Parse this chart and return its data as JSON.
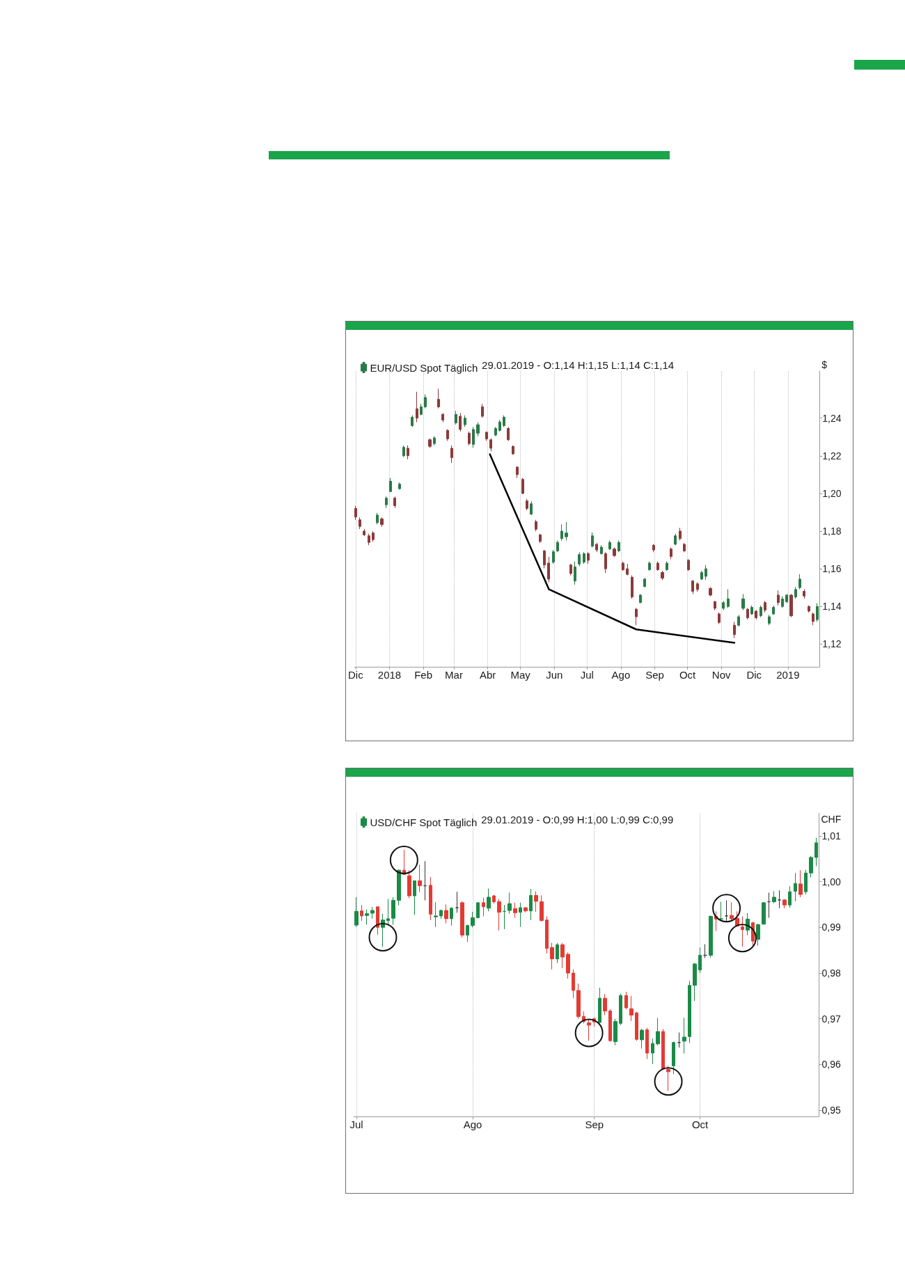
{
  "chart_data": [
    {
      "type": "candlestick",
      "legend": "top left",
      "grid": "x",
      "ylabel": "$",
      "annotations": [
        "29.01.2019 - O:1,14 H:1,15 L:1,14 C:1,14"
      ],
      "xlim": [
        "2017-11-30",
        "2019-01-30"
      ],
      "xticks": [
        {
          "value": "2017-12-01",
          "label": "Dic"
        },
        {
          "value": "2018-01-01",
          "label": "2018"
        },
        {
          "value": "2018-02-01",
          "label": "Feb"
        },
        {
          "value": "2018-03-01",
          "label": "Mar"
        },
        {
          "value": "2018-04-01",
          "label": "Abr"
        },
        {
          "value": "2018-05-01",
          "label": "May"
        },
        {
          "value": "2018-06-01",
          "label": "Jun"
        },
        {
          "value": "2018-07-01",
          "label": "Jul"
        },
        {
          "value": "2018-08-01",
          "label": "Ago"
        },
        {
          "value": "2018-09-01",
          "label": "Sep"
        },
        {
          "value": "2018-10-01",
          "label": "Oct"
        },
        {
          "value": "2018-11-01",
          "label": "Nov"
        },
        {
          "value": "2018-12-01",
          "label": "Dic"
        },
        {
          "value": "2019-01-01",
          "label": "2019"
        }
      ],
      "ylim": [
        1.108,
        1.265
      ],
      "yticks": [
        {
          "value": 1.12,
          "label": "1,12"
        },
        {
          "value": 1.14,
          "label": "1,14"
        },
        {
          "value": 1.16,
          "label": "1,16"
        },
        {
          "value": 1.18,
          "label": "1,18"
        },
        {
          "value": 1.2,
          "label": "1,20"
        },
        {
          "value": 1.22,
          "label": "1,22"
        },
        {
          "value": 1.24,
          "label": "1,24"
        }
      ],
      "series": [
        {
          "name": "EUR/USD Spot Täglich",
          "color": "#2a7a48",
          "x": [
            "2017-12-01",
            "2017-12-05",
            "2017-12-09",
            "2017-12-13",
            "2017-12-17",
            "2017-12-21",
            "2017-12-25",
            "2017-12-29",
            "2018-01-02",
            "2018-01-06",
            "2018-01-10",
            "2018-01-14",
            "2018-01-18",
            "2018-01-22",
            "2018-01-26",
            "2018-01-30",
            "2018-02-03",
            "2018-02-07",
            "2018-02-11",
            "2018-02-15",
            "2018-02-19",
            "2018-02-23",
            "2018-02-27",
            "2018-03-03",
            "2018-03-07",
            "2018-03-11",
            "2018-03-15",
            "2018-03-19",
            "2018-03-23",
            "2018-03-27",
            "2018-03-31",
            "2018-04-04",
            "2018-04-08",
            "2018-04-12",
            "2018-04-16",
            "2018-04-20",
            "2018-04-24",
            "2018-04-28",
            "2018-05-03",
            "2018-05-07",
            "2018-05-11",
            "2018-05-15",
            "2018-05-19",
            "2018-05-23",
            "2018-05-27",
            "2018-05-31",
            "2018-06-04",
            "2018-06-08",
            "2018-06-12",
            "2018-06-16",
            "2018-06-20",
            "2018-06-24",
            "2018-06-28",
            "2018-07-02",
            "2018-07-06",
            "2018-07-10",
            "2018-07-14",
            "2018-07-18",
            "2018-07-22",
            "2018-07-26",
            "2018-07-30",
            "2018-08-03",
            "2018-08-07",
            "2018-08-11",
            "2018-08-15",
            "2018-08-19",
            "2018-08-23",
            "2018-08-27",
            "2018-08-31",
            "2018-09-04",
            "2018-09-08",
            "2018-09-12",
            "2018-09-16",
            "2018-09-20",
            "2018-09-24",
            "2018-09-28",
            "2018-10-02",
            "2018-10-06",
            "2018-10-10",
            "2018-10-14",
            "2018-10-18",
            "2018-10-22",
            "2018-10-26",
            "2018-10-30",
            "2018-11-03",
            "2018-11-07",
            "2018-11-13",
            "2018-11-17",
            "2018-11-21",
            "2018-11-25",
            "2018-11-29",
            "2018-12-03",
            "2018-12-07",
            "2018-12-11",
            "2018-12-15",
            "2018-12-19",
            "2018-12-23",
            "2018-12-27",
            "2018-12-31",
            "2019-01-04",
            "2019-01-08",
            "2019-01-12",
            "2019-01-16",
            "2019-01-20",
            "2019-01-24",
            "2019-01-28"
          ],
          "ohlc": [
            [
              1.192,
              1.1934,
              1.186,
              1.1875
            ],
            [
              1.186,
              1.1873,
              1.1811,
              1.1825
            ],
            [
              1.18,
              1.1811,
              1.1774,
              1.178
            ],
            [
              1.1775,
              1.1786,
              1.1725,
              1.174
            ],
            [
              1.179,
              1.1799,
              1.1743,
              1.1755
            ],
            [
              1.1845,
              1.1897,
              1.1836,
              1.1885
            ],
            [
              1.1865,
              1.1873,
              1.1823,
              1.1835
            ],
            [
              1.194,
              1.1984,
              1.1922,
              1.1975
            ],
            [
              1.201,
              1.2082,
              1.2008,
              1.2065
            ],
            [
              1.1975,
              1.1984,
              1.1922,
              1.1935
            ],
            [
              1.2025,
              1.2058,
              1.2021,
              1.205
            ],
            [
              1.22,
              1.2255,
              1.2193,
              1.2245
            ],
            [
              1.224,
              1.2255,
              1.2181,
              1.22
            ],
            [
              1.236,
              1.2415,
              1.2353,
              1.2405
            ],
            [
              1.245,
              1.254,
              1.2378,
              1.24
            ],
            [
              1.242,
              1.2476,
              1.2415,
              1.246
            ],
            [
              1.246,
              1.2526,
              1.2452,
              1.251
            ],
            [
              1.2285,
              1.2292,
              1.2242,
              1.225
            ],
            [
              1.2265,
              1.2304,
              1.2255,
              1.2295
            ],
            [
              1.25,
              1.2556,
              1.2452,
              1.246
            ],
            [
              1.242,
              1.2427,
              1.2378,
              1.239
            ],
            [
              1.2335,
              1.2341,
              1.2279,
              1.229
            ],
            [
              1.224,
              1.2255,
              1.2162,
              1.219
            ],
            [
              1.2375,
              1.2439,
              1.2366,
              1.242
            ],
            [
              1.241,
              1.2427,
              1.2329,
              1.234
            ],
            [
              1.2365,
              1.2415,
              1.2353,
              1.24
            ],
            [
              1.232,
              1.2329,
              1.2255,
              1.2265
            ],
            [
              1.226,
              1.2353,
              1.2242,
              1.234
            ],
            [
              1.232,
              1.2378,
              1.2304,
              1.2365
            ],
            [
              1.246,
              1.2476,
              1.2402,
              1.241
            ],
            [
              1.2325,
              1.2329,
              1.2279,
              1.229
            ],
            [
              1.2285,
              1.2292,
              1.2224,
              1.224
            ],
            [
              1.231,
              1.2353,
              1.2304,
              1.2345
            ],
            [
              1.2335,
              1.239,
              1.2329,
              1.238
            ],
            [
              1.236,
              1.2415,
              1.2353,
              1.2405
            ],
            [
              1.2345,
              1.2353,
              1.2279,
              1.2285
            ],
            [
              1.225,
              1.2255,
              1.2205,
              1.221
            ],
            [
              1.214,
              1.2144,
              1.2082,
              1.21
            ],
            [
              1.2075,
              1.2082,
              1.1996,
              1.2
            ],
            [
              1.196,
              1.1971,
              1.191,
              1.192
            ],
            [
              1.189,
              1.1959,
              1.1885,
              1.1945
            ],
            [
              1.185,
              1.186,
              1.1799,
              1.181
            ],
            [
              1.178,
              1.1786,
              1.1737,
              1.1745
            ],
            [
              1.1695,
              1.17,
              1.1602,
              1.162
            ],
            [
              1.163,
              1.1663,
              1.1528,
              1.1545
            ],
            [
              1.1635,
              1.17,
              1.1626,
              1.169
            ],
            [
              1.1695,
              1.175,
              1.1688,
              1.174
            ],
            [
              1.176,
              1.1836,
              1.175,
              1.18
            ],
            [
              1.177,
              1.1848,
              1.175,
              1.179
            ],
            [
              1.162,
              1.1626,
              1.1565,
              1.1575
            ],
            [
              1.1535,
              1.1639,
              1.1515,
              1.161
            ],
            [
              1.1625,
              1.1688,
              1.1614,
              1.1675
            ],
            [
              1.1635,
              1.1688,
              1.1626,
              1.168
            ],
            [
              1.168,
              1.1688,
              1.1626,
              1.1645
            ],
            [
              1.172,
              1.1793,
              1.1713,
              1.1775
            ],
            [
              1.173,
              1.1737,
              1.1688,
              1.17
            ],
            [
              1.168,
              1.1725,
              1.1676,
              1.1715
            ],
            [
              1.168,
              1.1688,
              1.1577,
              1.16
            ],
            [
              1.1705,
              1.175,
              1.17,
              1.174
            ],
            [
              1.1705,
              1.1713,
              1.1663,
              1.167
            ],
            [
              1.1695,
              1.175,
              1.1688,
              1.174
            ],
            [
              1.163,
              1.1639,
              1.1589,
              1.1595
            ],
            [
              1.16,
              1.1626,
              1.1565,
              1.157
            ],
            [
              1.1555,
              1.1565,
              1.1441,
              1.145
            ],
            [
              1.1385,
              1.1392,
              1.13,
              1.1345
            ],
            [
              1.142,
              1.1466,
              1.1417,
              1.146
            ],
            [
              1.1505,
              1.1552,
              1.1503,
              1.1545
            ],
            [
              1.1595,
              1.1639,
              1.1589,
              1.163
            ],
            [
              1.1725,
              1.1731,
              1.1688,
              1.17
            ],
            [
              1.163,
              1.1639,
              1.1589,
              1.1595
            ],
            [
              1.158,
              1.1589,
              1.154,
              1.155
            ],
            [
              1.1595,
              1.1639,
              1.1589,
              1.163
            ],
            [
              1.1705,
              1.1713,
              1.1651,
              1.1665
            ],
            [
              1.173,
              1.1786,
              1.1725,
              1.1775
            ],
            [
              1.18,
              1.1817,
              1.175,
              1.176
            ],
            [
              1.173,
              1.1737,
              1.1688,
              1.1695
            ],
            [
              1.1645,
              1.1651,
              1.1589,
              1.1595
            ],
            [
              1.1535,
              1.154,
              1.1466,
              1.148
            ],
            [
              1.152,
              1.1528,
              1.1478,
              1.149
            ],
            [
              1.1545,
              1.1589,
              1.154,
              1.158
            ],
            [
              1.156,
              1.162,
              1.154,
              1.16
            ],
            [
              1.1495,
              1.1503,
              1.1454,
              1.146
            ],
            [
              1.1425,
              1.1429,
              1.138,
              1.139
            ],
            [
              1.136,
              1.1368,
              1.1306,
              1.1315
            ],
            [
              1.139,
              1.1429,
              1.138,
              1.142
            ],
            [
              1.14,
              1.1491,
              1.1392,
              1.144
            ],
            [
              1.13,
              1.1318,
              1.1232,
              1.125
            ],
            [
              1.13,
              1.1355,
              1.1294,
              1.1345
            ],
            [
              1.139,
              1.1466,
              1.138,
              1.144
            ],
            [
              1.1385,
              1.1392,
              1.1331,
              1.134
            ],
            [
              1.136,
              1.1405,
              1.1355,
              1.1395
            ],
            [
              1.1375,
              1.138,
              1.1331,
              1.134
            ],
            [
              1.135,
              1.1405,
              1.1343,
              1.1395
            ],
            [
              1.142,
              1.1429,
              1.1368,
              1.138
            ],
            [
              1.131,
              1.1355,
              1.13,
              1.1345
            ],
            [
              1.136,
              1.1405,
              1.1355,
              1.1395
            ],
            [
              1.146,
              1.1485,
              1.1405,
              1.142
            ],
            [
              1.14,
              1.1454,
              1.1392,
              1.144
            ],
            [
              1.1425,
              1.1466,
              1.1417,
              1.146
            ],
            [
              1.146,
              1.1466,
              1.1343,
              1.135
            ],
            [
              1.145,
              1.1503,
              1.1441,
              1.149
            ],
            [
              1.15,
              1.1571,
              1.1491,
              1.1545
            ],
            [
              1.148,
              1.1491,
              1.1441,
              1.1455
            ],
            [
              1.14,
              1.1405,
              1.1368,
              1.1375
            ],
            [
              1.136,
              1.1368,
              1.13,
              1.132
            ],
            [
              1.133,
              1.1417,
              1.1318,
              1.14
            ]
          ],
          "colors": [
            "#8c3a3a",
            "#8c3a3a",
            "#8c3a3a",
            "#8c3a3a",
            "#8c3a3a",
            "#2a7a48",
            "#8c3a3a",
            "#2a7a48",
            "#2a7a48",
            "#8c3a3a",
            "#2a7a48",
            "#2a7a48",
            "#8c3a3a",
            "#2a7a48",
            "#8c3a3a",
            "#2a7a48",
            "#2a7a48",
            "#8c3a3a",
            "#2a7a48",
            "#8c3a3a",
            "#8c3a3a",
            "#8c3a3a",
            "#8c3a3a",
            "#2a7a48",
            "#8c3a3a",
            "#2a7a48",
            "#8c3a3a",
            "#2a7a48",
            "#2a7a48",
            "#8c3a3a",
            "#8c3a3a",
            "#8c3a3a",
            "#2a7a48",
            "#2a7a48",
            "#2a7a48",
            "#8c3a3a",
            "#8c3a3a",
            "#8c3a3a",
            "#8c3a3a",
            "#8c3a3a",
            "#2a7a48",
            "#8c3a3a",
            "#8c3a3a",
            "#8c3a3a",
            "#8c3a3a",
            "#2a7a48",
            "#2a7a48",
            "#2a7a48",
            "#2a7a48",
            "#8c3a3a",
            "#2a7a48",
            "#2a7a48",
            "#2a7a48",
            "#8c3a3a",
            "#2a7a48",
            "#8c3a3a",
            "#2a7a48",
            "#8c3a3a",
            "#2a7a48",
            "#8c3a3a",
            "#2a7a48",
            "#8c3a3a",
            "#8c3a3a",
            "#8c3a3a",
            "#8c3a3a",
            "#2a7a48",
            "#2a7a48",
            "#2a7a48",
            "#8c3a3a",
            "#8c3a3a",
            "#8c3a3a",
            "#2a7a48",
            "#8c3a3a",
            "#2a7a48",
            "#8c3a3a",
            "#8c3a3a",
            "#8c3a3a",
            "#8c3a3a",
            "#8c3a3a",
            "#2a7a48",
            "#2a7a48",
            "#8c3a3a",
            "#8c3a3a",
            "#8c3a3a",
            "#2a7a48",
            "#2a7a48",
            "#8c3a3a",
            "#2a7a48",
            "#2a7a48",
            "#8c3a3a",
            "#2a7a48",
            "#8c3a3a",
            "#2a7a48",
            "#8c3a3a",
            "#2a7a48",
            "#2a7a48",
            "#8c3a3a",
            "#2a7a48",
            "#2a7a48",
            "#8c3a3a",
            "#2a7a48",
            "#2a7a48",
            "#8c3a3a",
            "#8c3a3a",
            "#8c3a3a",
            "#2a7a48"
          ]
        },
        {
          "type": "line",
          "x": [
            "2018-04-03",
            "2018-05-27",
            "2018-08-15",
            "2018-11-13"
          ],
          "values": [
            1.2208,
            1.1491,
            1.1278,
            1.1207
          ],
          "color": "#000000"
        }
      ]
    },
    {
      "type": "candlestick",
      "legend": "top left",
      "grid": "x",
      "ylabel": "CHF",
      "annotations": [
        "29.01.2019 - O:0,99 H:1,00 L:0,99 C:0,99"
      ],
      "categories": [
        "Jul",
        null,
        null,
        null,
        null,
        null,
        null,
        null,
        null,
        null,
        null,
        null,
        null,
        null,
        null,
        null,
        null,
        null,
        null,
        null,
        null,
        null,
        "Ago",
        null,
        null,
        null,
        null,
        null,
        null,
        null,
        null,
        null,
        null,
        null,
        null,
        null,
        null,
        null,
        null,
        null,
        null,
        null,
        null,
        null,
        null,
        "Sep",
        null,
        null,
        null,
        null,
        null,
        null,
        null,
        null,
        null,
        null,
        null,
        null,
        null,
        null,
        null,
        null,
        null,
        null,
        null,
        "Oct",
        null,
        null,
        null,
        null,
        null,
        null,
        null,
        null,
        null,
        null,
        null,
        null,
        null,
        null,
        null,
        null,
        null,
        null,
        null,
        null,
        null,
        null
      ],
      "ylim": [
        0.9486,
        1.015
      ],
      "yticks": [
        {
          "value": 0.95,
          "label": "0,95"
        },
        {
          "value": 0.96,
          "label": "0,96"
        },
        {
          "value": 0.97,
          "label": "0,97"
        },
        {
          "value": 0.98,
          "label": "0,98"
        },
        {
          "value": 0.99,
          "label": "0,99"
        },
        {
          "value": 1.0,
          "label": "1,00"
        },
        {
          "value": 1.01,
          "label": "1,01"
        }
      ],
      "series": [
        {
          "name": "USD/CHF Spot Täglich",
          "color": "#1b8a47",
          "ohlc": [
            [
              0.9905,
              0.9966,
              0.9901,
              0.9935
            ],
            [
              0.9936,
              0.9949,
              0.9914,
              0.9925
            ],
            [
              0.9926,
              0.9939,
              0.9906,
              0.993
            ],
            [
              0.9931,
              0.9945,
              0.9919,
              0.9937
            ],
            [
              0.9945,
              0.9945,
              0.9884,
              0.99
            ],
            [
              0.99,
              0.993,
              0.9857,
              0.9916
            ],
            [
              0.9915,
              0.9962,
              0.9904,
              0.9919
            ],
            [
              0.992,
              0.9966,
              0.9906,
              0.9959
            ],
            [
              0.9959,
              1.0027,
              0.9948,
              1.0025
            ],
            [
              1.0025,
              1.007,
              1.0015,
              1.0016
            ],
            [
              1.0013,
              1.0025,
              0.9964,
              0.9969
            ],
            [
              0.9969,
              1.0002,
              0.9927,
              1.0002
            ],
            [
              1.0002,
              1.0037,
              0.9977,
              0.9991
            ],
            [
              0.9991,
              1.0045,
              0.9959,
              0.9991
            ],
            [
              0.9992,
              1.001,
              0.9916,
              0.9929
            ],
            [
              0.9923,
              0.9955,
              0.9901,
              0.9925
            ],
            [
              0.9925,
              0.9939,
              0.9919,
              0.9937
            ],
            [
              0.9937,
              0.995,
              0.9909,
              0.9919
            ],
            [
              0.9919,
              0.9944,
              0.9904,
              0.9942
            ],
            [
              0.9943,
              0.9978,
              0.9932,
              0.9943
            ],
            [
              0.9954,
              0.9957,
              0.9878,
              0.9883
            ],
            [
              0.9883,
              0.9906,
              0.9868,
              0.9904
            ],
            [
              0.9904,
              0.9934,
              0.99,
              0.9921
            ],
            [
              0.9921,
              0.9955,
              0.992,
              0.9954
            ],
            [
              0.9954,
              0.9965,
              0.9924,
              0.9945
            ],
            [
              0.9942,
              0.9985,
              0.9935,
              0.9966
            ],
            [
              0.9969,
              0.9971,
              0.9952,
              0.9956
            ],
            [
              0.9956,
              0.9962,
              0.9893,
              0.9933
            ],
            [
              0.9935,
              0.9949,
              0.9896,
              0.9935
            ],
            [
              0.9937,
              0.9976,
              0.993,
              0.9952
            ],
            [
              0.9941,
              0.9954,
              0.9921,
              0.9932
            ],
            [
              0.9933,
              0.9954,
              0.9901,
              0.9943
            ],
            [
              0.9943,
              0.9944,
              0.9933,
              0.9936
            ],
            [
              0.9936,
              0.9984,
              0.9916,
              0.997
            ],
            [
              0.997,
              0.9979,
              0.9934,
              0.9957
            ],
            [
              0.9956,
              0.997,
              0.9913,
              0.9915
            ],
            [
              0.9916,
              0.9924,
              0.9843,
              0.9854
            ],
            [
              0.9856,
              0.9866,
              0.9808,
              0.9831
            ],
            [
              0.9831,
              0.9866,
              0.9822,
              0.9862
            ],
            [
              0.9862,
              0.9866,
              0.9811,
              0.9835
            ],
            [
              0.9841,
              0.9845,
              0.9788,
              0.98
            ],
            [
              0.98,
              0.9808,
              0.9745,
              0.9762
            ],
            [
              0.9762,
              0.9777,
              0.97,
              0.9705
            ],
            [
              0.9705,
              0.9716,
              0.969,
              0.9694
            ],
            [
              0.9691,
              0.9698,
              0.9652,
              0.9686
            ],
            [
              0.97,
              0.9703,
              0.9683,
              0.9693
            ],
            [
              0.9692,
              0.9768,
              0.969,
              0.9745
            ],
            [
              0.9745,
              0.9754,
              0.9708,
              0.9717
            ],
            [
              0.9717,
              0.9721,
              0.965,
              0.9652
            ],
            [
              0.965,
              0.97,
              0.9642,
              0.9694
            ],
            [
              0.969,
              0.9755,
              0.9686,
              0.9751
            ],
            [
              0.9751,
              0.9759,
              0.9721,
              0.9724
            ],
            [
              0.9722,
              0.975,
              0.9695,
              0.9708
            ],
            [
              0.9713,
              0.9715,
              0.9652,
              0.9655
            ],
            [
              0.9654,
              0.9678,
              0.9635,
              0.9675
            ],
            [
              0.9676,
              0.968,
              0.9612,
              0.9625
            ],
            [
              0.9625,
              0.9657,
              0.9601,
              0.9646
            ],
            [
              0.9645,
              0.9702,
              0.9642,
              0.9672
            ],
            [
              0.9672,
              0.9678,
              0.9589,
              0.959
            ],
            [
              0.9589,
              0.9597,
              0.9542,
              0.9584
            ],
            [
              0.9597,
              0.965,
              0.9579,
              0.9648
            ],
            [
              0.9648,
              0.967,
              0.9637,
              0.9648
            ],
            [
              0.9651,
              0.9702,
              0.9624,
              0.966
            ],
            [
              0.9661,
              0.9783,
              0.9647,
              0.9773
            ],
            [
              0.9773,
              0.9822,
              0.9739,
              0.982
            ],
            [
              0.9807,
              0.9856,
              0.98,
              0.9839
            ],
            [
              0.9839,
              0.9863,
              0.9833,
              0.9839
            ],
            [
              0.9839,
              0.9926,
              0.9834,
              0.9924
            ],
            [
              0.9924,
              0.9935,
              0.9892,
              0.9918
            ],
            [
              0.9918,
              0.9956,
              0.9914,
              0.9919
            ],
            [
              0.9925,
              0.9959,
              0.9911,
              0.9925
            ],
            [
              0.9926,
              0.9955,
              0.9916,
              0.9919
            ],
            [
              0.992,
              0.9935,
              0.9901,
              0.9903
            ],
            [
              0.9901,
              0.9924,
              0.9858,
              0.9895
            ],
            [
              0.9894,
              0.9931,
              0.9883,
              0.9918
            ],
            [
              0.991,
              0.9912,
              0.986,
              0.987
            ],
            [
              0.9874,
              0.9908,
              0.986,
              0.9906
            ],
            [
              0.9907,
              0.9955,
              0.9906,
              0.9954
            ],
            [
              0.9956,
              0.9976,
              0.9921,
              0.9956
            ],
            [
              0.9956,
              0.9979,
              0.9953,
              0.9966
            ],
            [
              0.996,
              0.9981,
              0.9942,
              0.996
            ],
            [
              0.996,
              0.9962,
              0.9942,
              0.9949
            ],
            [
              0.9949,
              0.999,
              0.9943,
              0.9978
            ],
            [
              0.9979,
              1.0019,
              0.9957,
              0.9996
            ],
            [
              0.9995,
              1.0025,
              0.9966,
              0.9972
            ],
            [
              0.9978,
              1.0026,
              0.9972,
              1.0019
            ],
            [
              1.0019,
              1.0056,
              1.0009,
              1.0053
            ],
            [
              1.0053,
              1.0096,
              1.0034,
              1.0085
            ]
          ],
          "colors": [
            "#1b8a47",
            "#e23b34",
            "#1b8a47",
            "#1b8a47",
            "#e23b34",
            "#1b8a47",
            "#1b8a47",
            "#1b8a47",
            "#1b8a47",
            "#e23b34",
            "#e23b34",
            "#1b8a47",
            "#e23b34",
            "#333333",
            "#e23b34",
            "#1b8a47",
            "#1b8a47",
            "#e23b34",
            "#1b8a47",
            "#333333",
            "#e23b34",
            "#1b8a47",
            "#1b8a47",
            "#1b8a47",
            "#e23b34",
            "#1b8a47",
            "#e23b34",
            "#e23b34",
            "#1b8a47",
            "#1b8a47",
            "#e23b34",
            "#1b8a47",
            "#e23b34",
            "#1b8a47",
            "#e23b34",
            "#e23b34",
            "#e23b34",
            "#e23b34",
            "#1b8a47",
            "#e23b34",
            "#e23b34",
            "#e23b34",
            "#e23b34",
            "#e23b34",
            "#e23b34",
            "#e23b34",
            "#1b8a47",
            "#e23b34",
            "#e23b34",
            "#1b8a47",
            "#1b8a47",
            "#e23b34",
            "#e23b34",
            "#e23b34",
            "#1b8a47",
            "#e23b34",
            "#1b8a47",
            "#1b8a47",
            "#e23b34",
            "#e23b34",
            "#1b8a47",
            "#333333",
            "#1b8a47",
            "#1b8a47",
            "#1b8a47",
            "#1b8a47",
            "#333333",
            "#1b8a47",
            "#e23b34",
            "#1b8a47",
            "#333333",
            "#e23b34",
            "#e23b34",
            "#e23b34",
            "#1b8a47",
            "#e23b34",
            "#1b8a47",
            "#1b8a47",
            "#333333",
            "#1b8a47",
            "#333333",
            "#e23b34",
            "#1b8a47",
            "#1b8a47",
            "#e23b34",
            "#1b8a47",
            "#1b8a47",
            "#1b8a47"
          ]
        }
      ]
    }
  ]
}
